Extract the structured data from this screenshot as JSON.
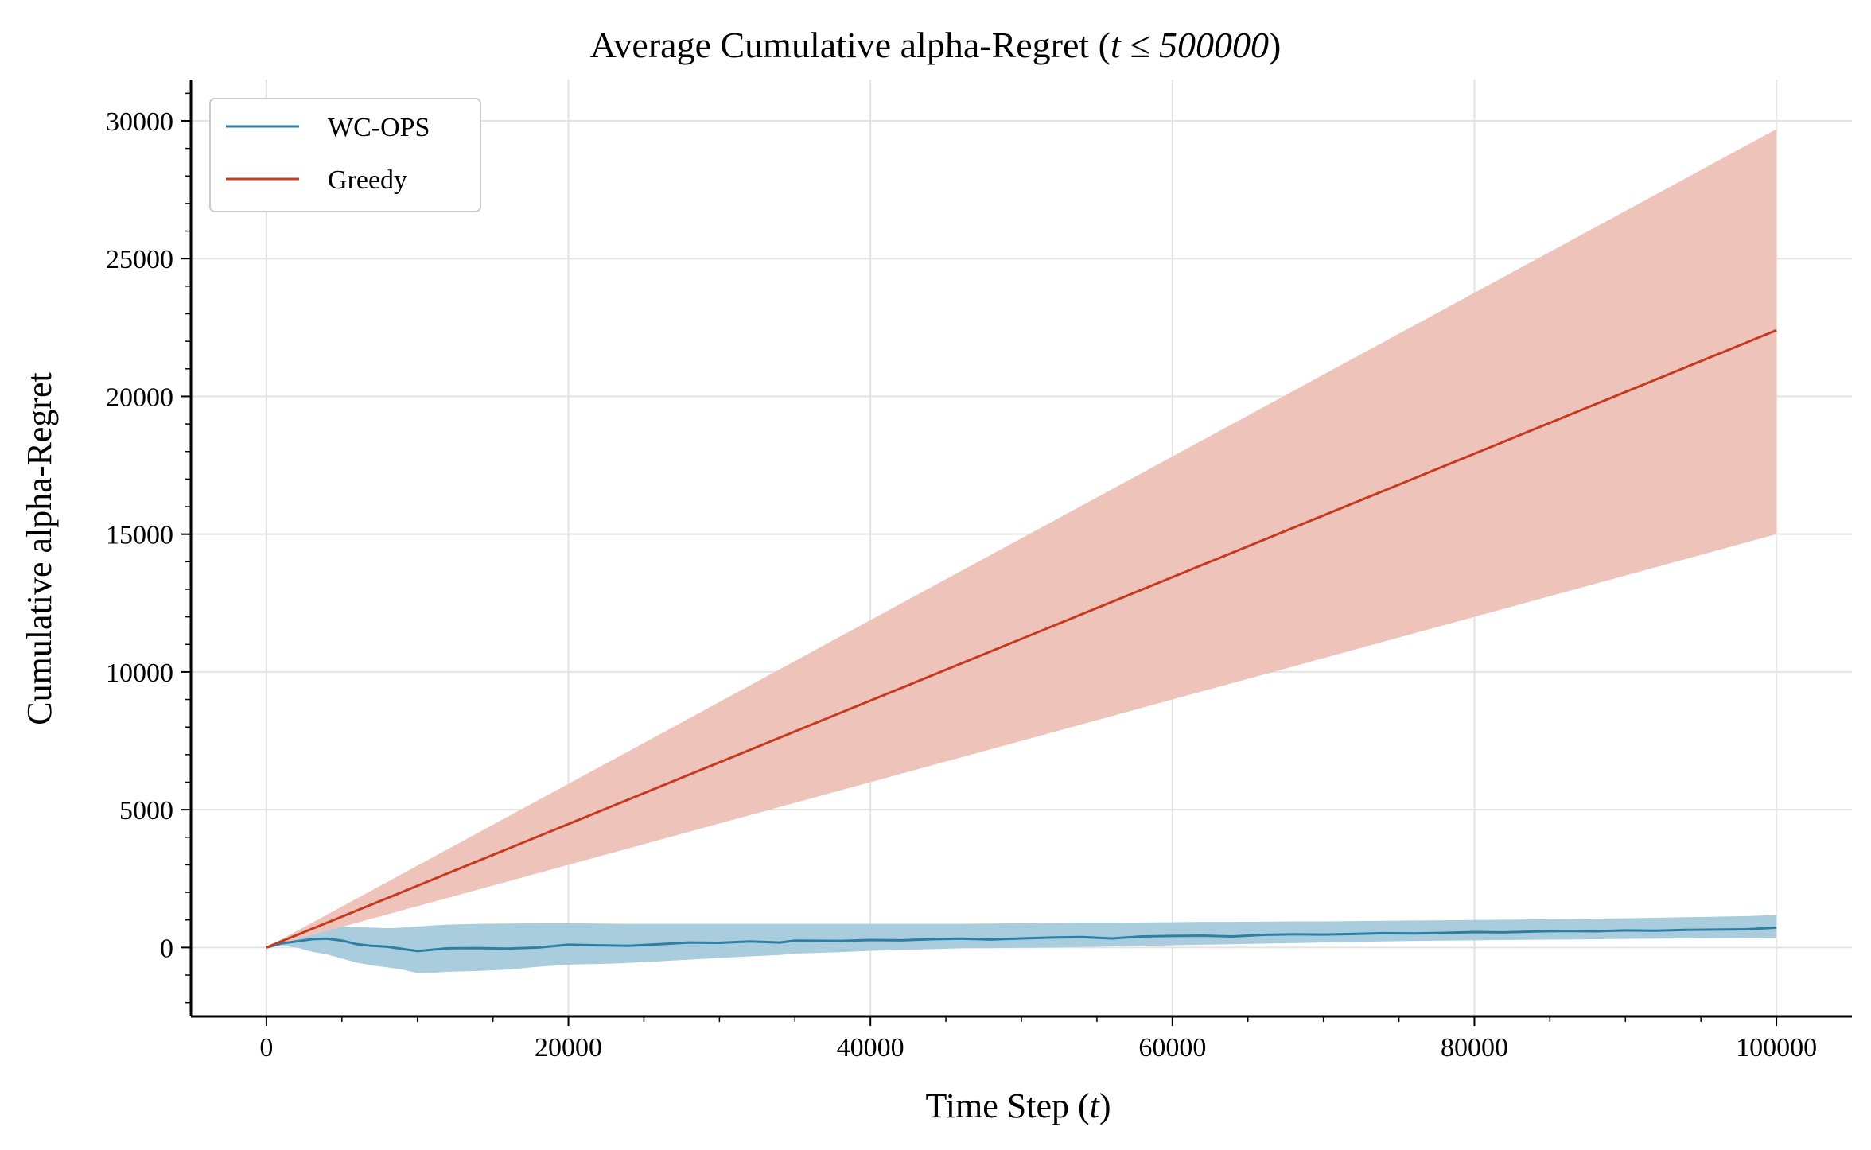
{
  "chart_data": {
    "type": "line",
    "title": "Average Cumulative alpha-Regret (",
    "title_math": "t ≤ 500000",
    "title_close": ")",
    "xlabel": "Time Step (",
    "xlabel_math": "t",
    "xlabel_close": ")",
    "ylabel": "Cumulative alpha-Regret",
    "xlim": [
      -5000,
      105000
    ],
    "ylim": [
      -2500,
      31500
    ],
    "xticks": [
      0,
      20000,
      40000,
      60000,
      80000,
      100000
    ],
    "xtick_labels": [
      "0",
      "20000",
      "40000",
      "60000",
      "80000",
      "100000"
    ],
    "yticks": [
      0,
      5000,
      10000,
      15000,
      20000,
      25000,
      30000
    ],
    "ytick_labels": [
      "0",
      "5000",
      "10000",
      "15000",
      "20000",
      "25000",
      "30000"
    ],
    "grid": true,
    "legend_position": "top-left",
    "series": [
      {
        "name": "WC-OPS",
        "color": "#2e7fa4",
        "band_color": "#a9cddd",
        "x": [
          0,
          1000,
          2000,
          3000,
          4000,
          5000,
          6000,
          7000,
          8000,
          9000,
          10000,
          11000,
          12000,
          14000,
          16000,
          18000,
          20000,
          22000,
          24000,
          26000,
          28000,
          30000,
          32000,
          34000,
          35000,
          38000,
          40000,
          42000,
          44000,
          46000,
          48000,
          50000,
          52000,
          54000,
          56000,
          58000,
          60000,
          62000,
          64000,
          66000,
          68000,
          70000,
          72000,
          74000,
          76000,
          78000,
          80000,
          82000,
          84000,
          86000,
          88000,
          90000,
          92000,
          94000,
          96000,
          98000,
          100000
        ],
        "y": [
          0,
          150,
          220,
          300,
          320,
          250,
          120,
          60,
          30,
          -50,
          -130,
          -80,
          -30,
          -20,
          -40,
          0,
          100,
          80,
          60,
          120,
          180,
          170,
          220,
          180,
          250,
          240,
          270,
          260,
          300,
          320,
          290,
          330,
          360,
          380,
          330,
          400,
          420,
          430,
          400,
          460,
          480,
          470,
          490,
          520,
          510,
          530,
          560,
          550,
          580,
          600,
          590,
          620,
          610,
          640,
          650,
          660,
          720
        ],
        "lower": [
          0,
          80,
          0,
          -150,
          -250,
          -400,
          -550,
          -650,
          -720,
          -800,
          -930,
          -920,
          -880,
          -850,
          -800,
          -700,
          -620,
          -600,
          -560,
          -500,
          -440,
          -380,
          -320,
          -270,
          -220,
          -170,
          -120,
          -90,
          -60,
          -30,
          -20,
          -10,
          0,
          20,
          40,
          60,
          80,
          100,
          120,
          140,
          160,
          180,
          200,
          220,
          240,
          250,
          260,
          270,
          280,
          290,
          300,
          310,
          320,
          330,
          340,
          350,
          360
        ],
        "upper": [
          0,
          300,
          500,
          700,
          780,
          760,
          740,
          720,
          700,
          720,
          760,
          800,
          830,
          860,
          870,
          880,
          880,
          870,
          860,
          860,
          860,
          860,
          860,
          860,
          860,
          860,
          860,
          860,
          860,
          860,
          870,
          880,
          890,
          900,
          900,
          910,
          920,
          930,
          930,
          940,
          950,
          950,
          960,
          970,
          980,
          990,
          1000,
          1010,
          1020,
          1030,
          1050,
          1060,
          1080,
          1100,
          1120,
          1140,
          1180
        ]
      },
      {
        "name": "Greedy",
        "color": "#c8391f",
        "band_color": "#eec3ba",
        "x": [
          0,
          100000
        ],
        "y": [
          0,
          22400
        ],
        "lower": [
          0,
          15000
        ],
        "upper": [
          0,
          29700
        ]
      }
    ]
  }
}
